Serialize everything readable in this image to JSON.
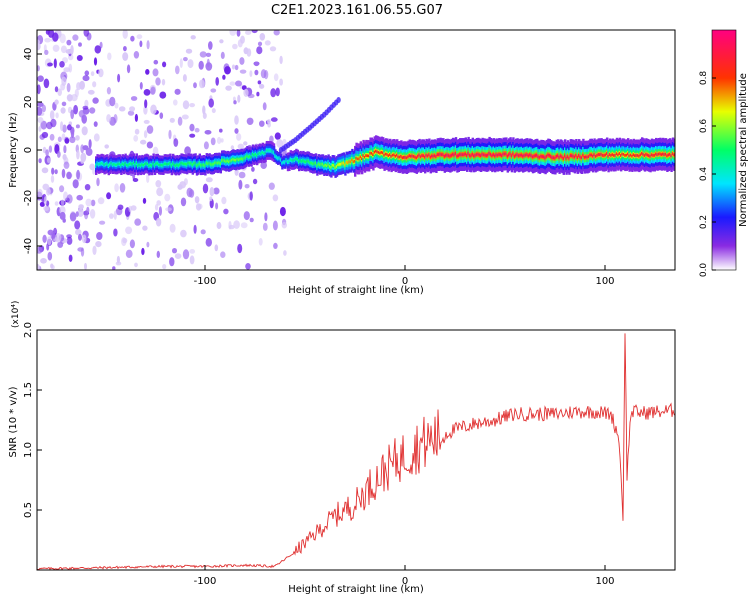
{
  "title": "C2E1.2023.161.06.55.G07",
  "chart_data": [
    {
      "type": "heatmap",
      "xlabel": "Height of straight line (km)",
      "ylabel": "Frequency (Hz)",
      "xlim": [
        -184,
        135
      ],
      "ylim": [
        -50,
        50
      ],
      "xticks": [
        -100,
        0,
        100
      ],
      "yticks": [
        -40,
        -20,
        0,
        20,
        40
      ],
      "colorbar": {
        "label": "Normalized spectral amplitude",
        "range": [
          0.0,
          1.0
        ],
        "ticks": [
          0.0,
          0.2,
          0.4,
          0.6,
          0.8
        ],
        "tick_labels": [
          "0.0",
          "0.2",
          "0.4",
          "0.6",
          "0.8"
        ],
        "colors": [
          "#ffffff",
          "#7b1cf0",
          "#1010ff",
          "#00e5ff",
          "#00ff44",
          "#ffff00",
          "#ff2a00",
          "#ff0077"
        ]
      },
      "ridge": {
        "x": [
          -155,
          -140,
          -120,
          -100,
          -85,
          -75,
          -68,
          -62,
          -55,
          -45,
          -35,
          -25,
          -15,
          -8,
          0,
          20,
          50,
          80,
          100,
          110,
          120,
          135
        ],
        "freq_hz": [
          -6,
          -6,
          -6,
          -6,
          -4,
          -2,
          0,
          -5,
          -4,
          -6,
          -7,
          -4,
          -1,
          -2,
          -3,
          -2,
          -2,
          -3,
          -2,
          -2,
          -2,
          -2
        ],
        "amplitude": [
          0.45,
          0.5,
          0.5,
          0.55,
          0.6,
          0.5,
          0.45,
          0.4,
          0.5,
          0.55,
          0.65,
          0.8,
          0.85,
          0.85,
          0.9,
          0.95,
          0.95,
          0.95,
          0.9,
          0.85,
          0.9,
          0.9
        ]
      },
      "branch": {
        "x": [
          -62,
          -55,
          -48,
          -40,
          -33
        ],
        "freq_hz": [
          0,
          4,
          9,
          15,
          21
        ]
      },
      "noise_region_x": [
        -184,
        -60
      ]
    },
    {
      "type": "line",
      "xlabel": "Height of straight line (km)",
      "ylabel": "SNR (10 * v/v)",
      "y_multiplier": "(x10⁴)",
      "xlim": [
        -184,
        135
      ],
      "ylim": [
        0,
        2.0
      ],
      "xticks": [
        -100,
        0,
        100
      ],
      "yticks": [
        0.5,
        1.0,
        1.5,
        2.0
      ],
      "ytick_labels": [
        "0.5",
        "1.0",
        "1.5",
        "2.0"
      ],
      "color": "#e03030",
      "x": [
        -184,
        -150,
        -120,
        -100,
        -80,
        -65,
        -55,
        -45,
        -35,
        -25,
        -15,
        -5,
        5,
        15,
        25,
        35,
        45,
        55,
        65,
        75,
        85,
        95,
        103,
        107,
        109,
        110,
        111,
        113,
        120,
        135
      ],
      "y": [
        0.01,
        0.02,
        0.03,
        0.03,
        0.04,
        0.03,
        0.15,
        0.3,
        0.45,
        0.55,
        0.75,
        0.9,
        1.02,
        1.1,
        1.17,
        1.22,
        1.25,
        1.3,
        1.3,
        1.3,
        1.32,
        1.32,
        1.3,
        1.1,
        0.45,
        2.0,
        0.8,
        1.32,
        1.31,
        1.33
      ]
    }
  ]
}
